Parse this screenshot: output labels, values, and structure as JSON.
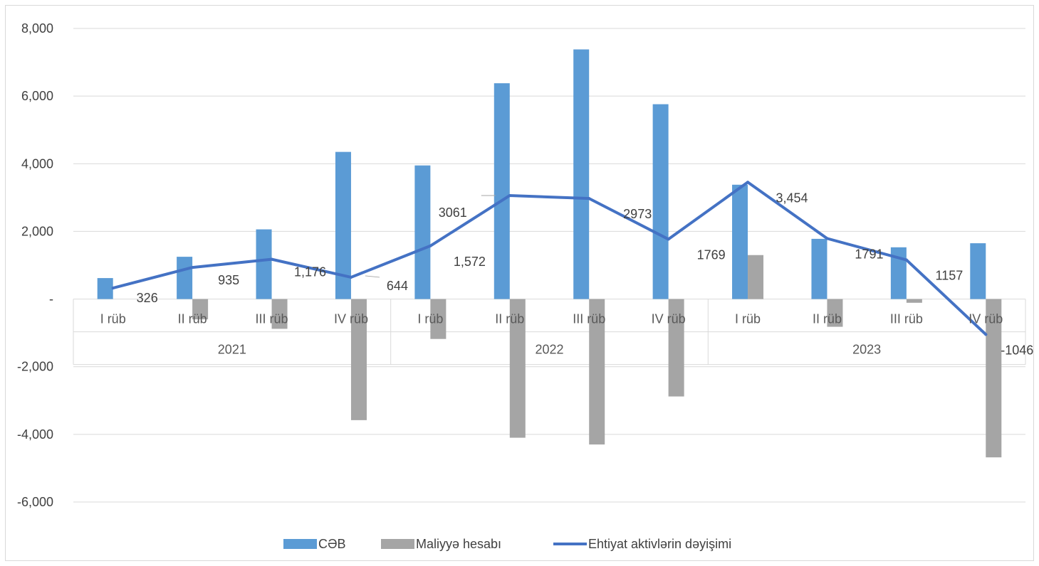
{
  "chart_data": {
    "type": "bar",
    "title": "",
    "xlabel": "",
    "ylabel": "",
    "ylim": [
      -7000,
      8000
    ],
    "y_ticks": [
      8000,
      6000,
      4000,
      2000,
      0,
      -2000,
      -4000,
      -6000
    ],
    "y_tick_labels": [
      "8,000",
      "6,000",
      "4,000",
      "2,000",
      "-",
      "-2,000",
      "-4,000",
      "-6,000"
    ],
    "grid": true,
    "legend_position": "bottom",
    "categories": [
      "I rüb",
      "II rüb",
      "III rüb",
      "IV rüb",
      "I rüb",
      "II rüb",
      "III rüb",
      "IV rüb",
      "I rüb",
      "II rüb",
      "III rüb",
      "IV rüb"
    ],
    "groups": [
      {
        "label": "2021",
        "span": 4
      },
      {
        "label": "2022",
        "span": 4
      },
      {
        "label": "2023",
        "span": 4
      }
    ],
    "series": [
      {
        "name": "CƏB",
        "kind": "bar",
        "color": "#5b9bd5",
        "values": [
          620,
          1250,
          2060,
          4350,
          3950,
          6380,
          7380,
          5760,
          3380,
          1780,
          1530,
          1650
        ]
      },
      {
        "name": "Maliyyə hesabı",
        "kind": "bar",
        "color": "#a5a5a5",
        "values": [
          0,
          -600,
          -880,
          -3580,
          -1180,
          -4100,
          -4300,
          -2880,
          1300,
          -820,
          -110,
          -4680
        ]
      },
      {
        "name": "Ehtiyat aktivlərin dəyişimi",
        "kind": "line",
        "color": "#4472c4",
        "values": [
          326,
          935,
          1176,
          644,
          1572,
          3061,
          2973,
          1769,
          3454,
          1791,
          1157,
          -1046
        ],
        "data_labels": [
          "326",
          "935",
          "1,176",
          "644",
          "1,572",
          "3061",
          "2973",
          "1769",
          "3,454",
          "1791",
          "1157",
          "-1046"
        ]
      }
    ]
  }
}
